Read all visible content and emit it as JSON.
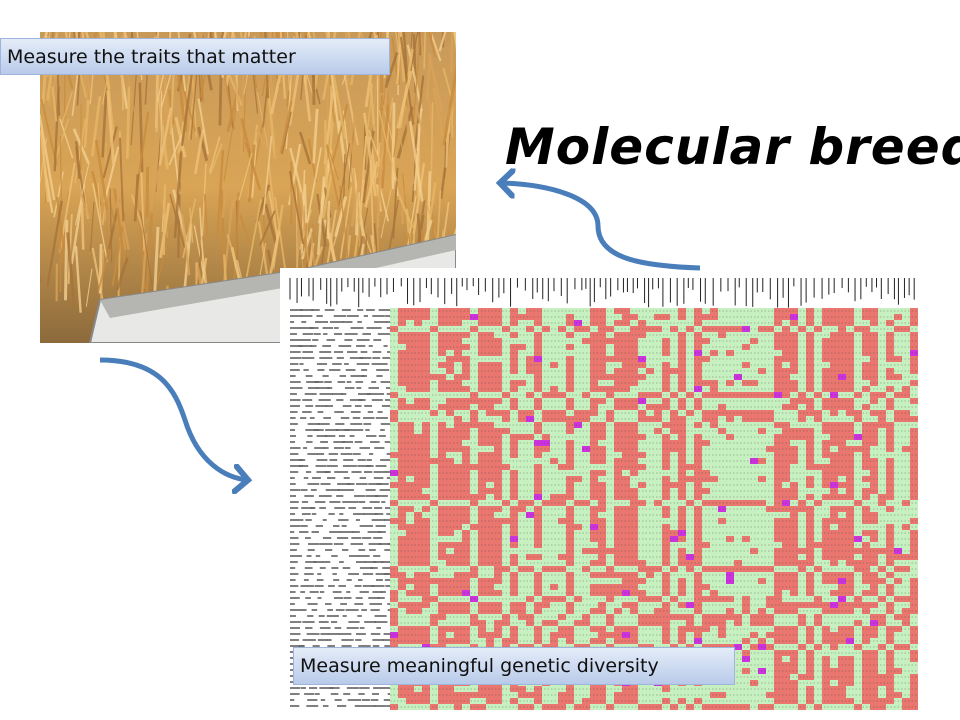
{
  "title": "Molecular breeding",
  "labels": {
    "top": "Measure the traits that matter",
    "bottom": "Measure meaningful genetic diversity"
  }
}
